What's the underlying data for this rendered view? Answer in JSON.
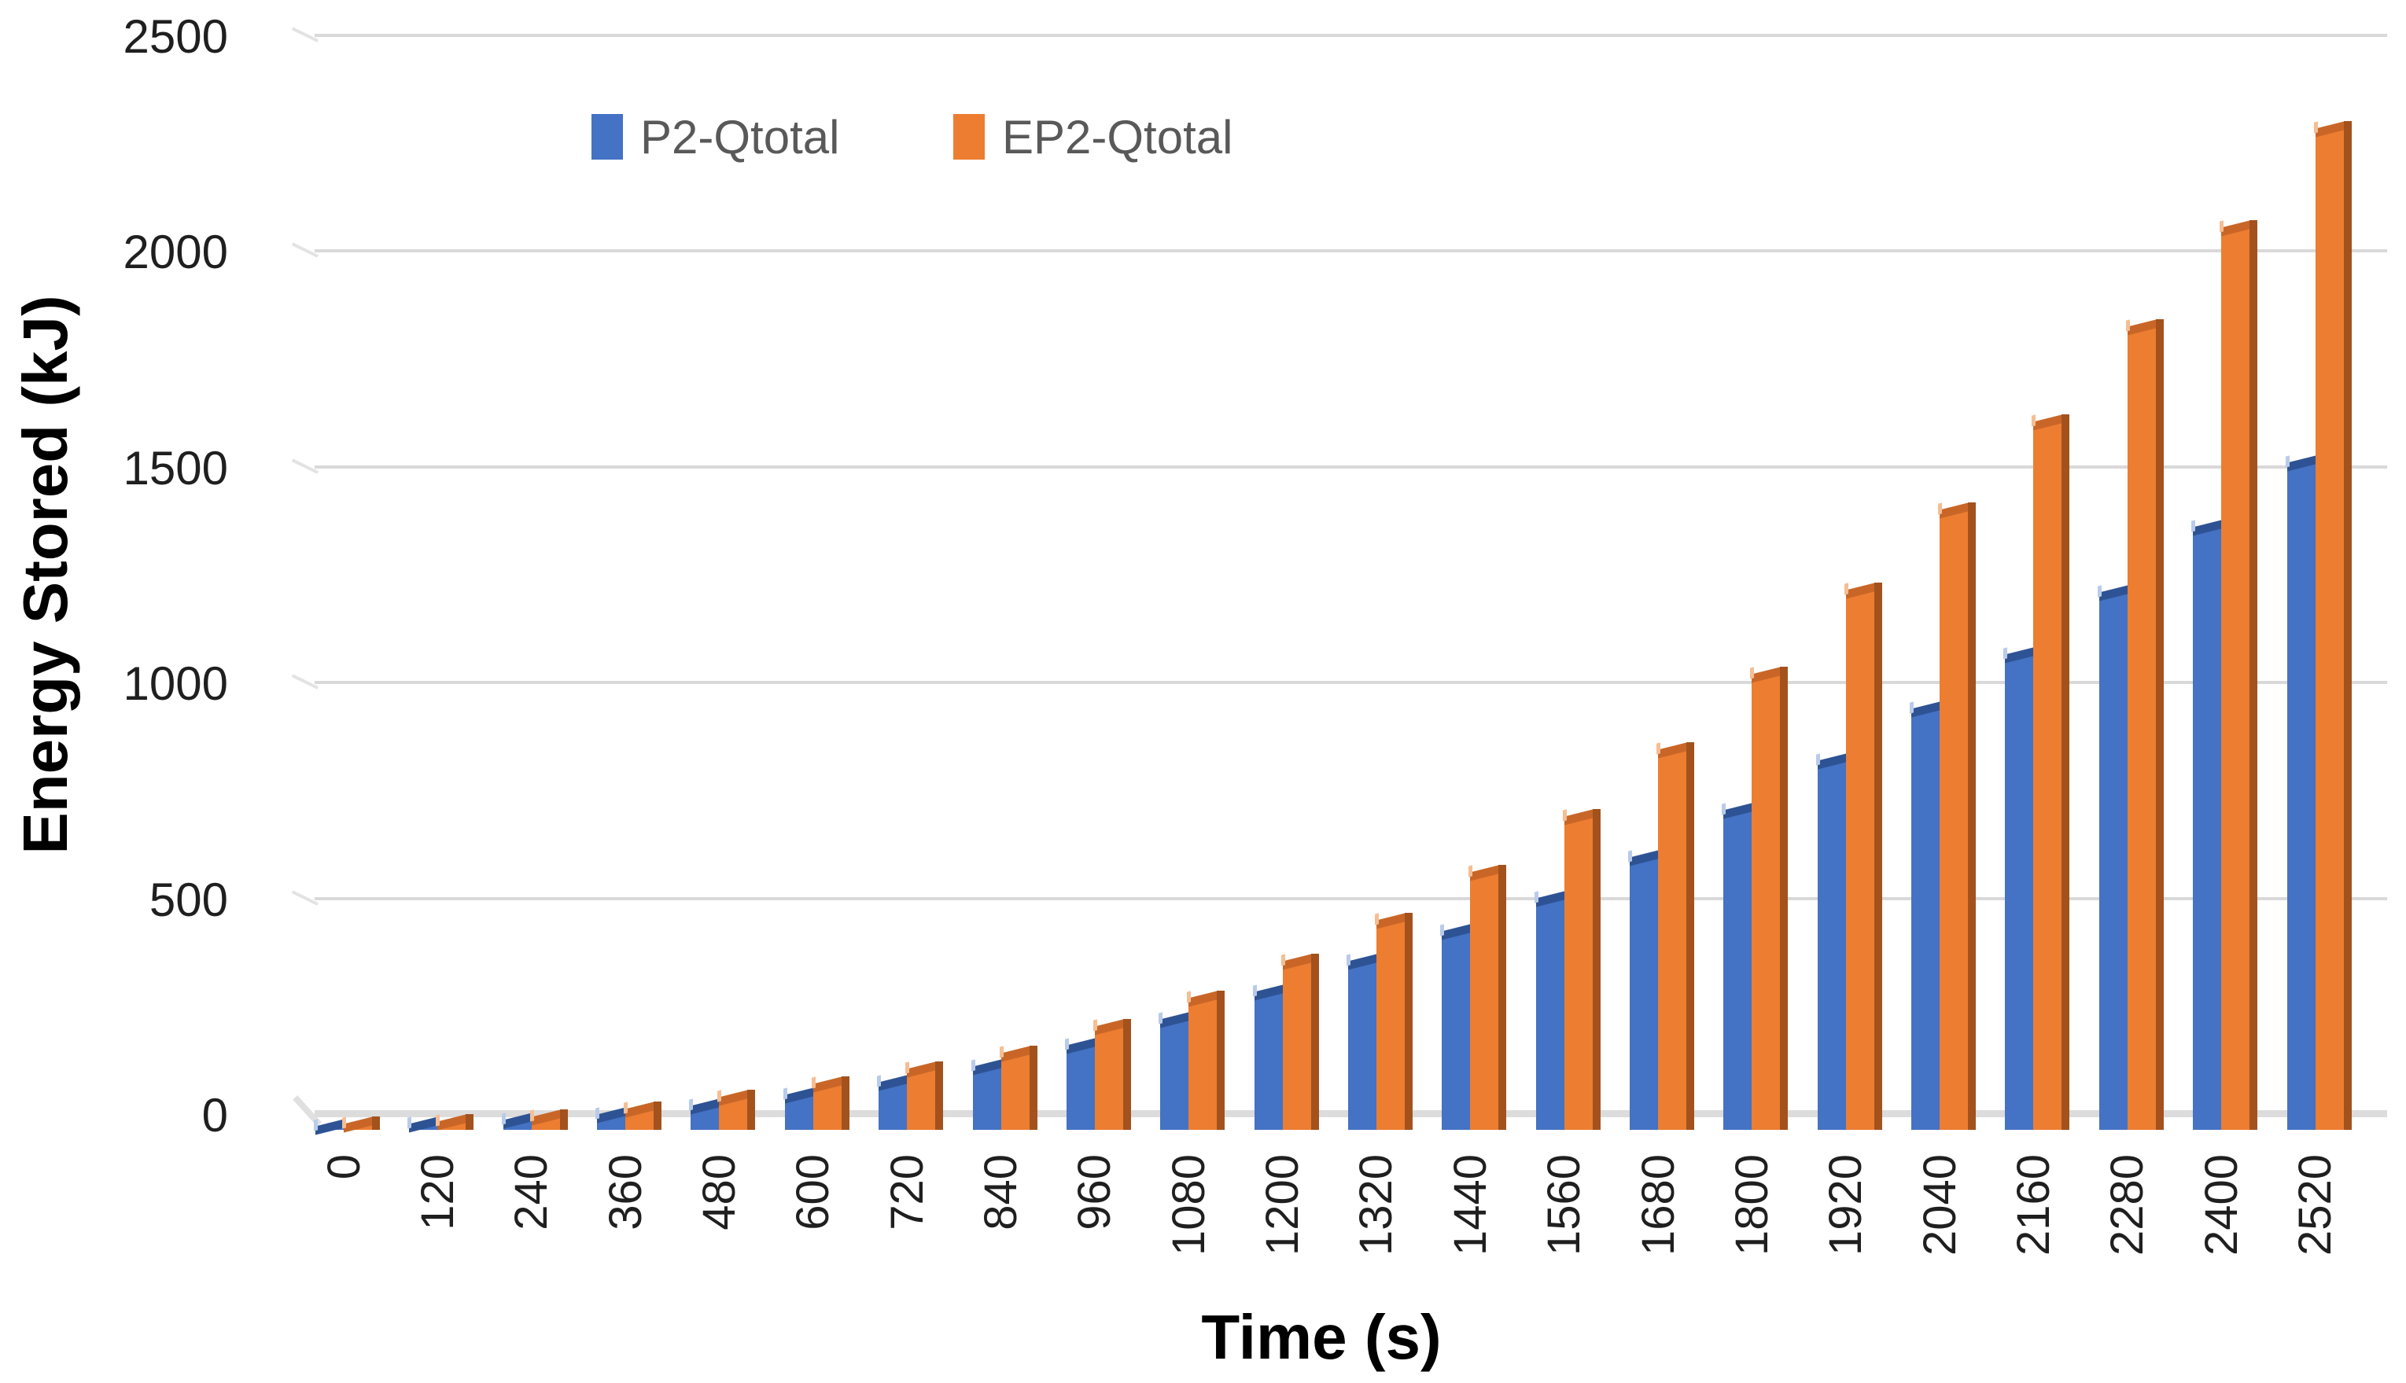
{
  "chart_data": {
    "type": "bar",
    "title": "",
    "xlabel": "Time (s)",
    "ylabel": "Energy Stored (kJ)",
    "categories": [
      "0",
      "120",
      "240",
      "360",
      "480",
      "600",
      "720",
      "840",
      "960",
      "1080",
      "1200",
      "1320",
      "1440",
      "1560",
      "1680",
      "1800",
      "1920",
      "2040",
      "2160",
      "2280",
      "2400",
      "2520"
    ],
    "series": [
      {
        "name": "P2-Qtotal",
        "color": "#4472C4",
        "values": [
          8,
          13,
          22,
          35,
          55,
          80,
          110,
          145,
          195,
          255,
          318,
          390,
          460,
          535,
          630,
          740,
          855,
          975,
          1100,
          1245,
          1395,
          1545
        ]
      },
      {
        "name": "EP2-Qtotal",
        "color": "#ED7D31",
        "values": [
          12,
          18,
          30,
          48,
          75,
          105,
          140,
          176,
          238,
          305,
          390,
          485,
          595,
          725,
          880,
          1055,
          1250,
          1435,
          1640,
          1860,
          2090,
          2320
        ]
      }
    ],
    "ylim": [
      0,
      2500
    ],
    "y_ticks": [
      0,
      500,
      1000,
      1500,
      2000,
      2500
    ],
    "grid": true,
    "legend_position": "top-center",
    "style": "excel-3d-clustered-column"
  },
  "axes": {
    "x_title": "Time (s)",
    "y_title": "Energy Stored (kJ)"
  },
  "legend": {
    "items": [
      {
        "label": "P2-Qtotal",
        "color": "#4472C4"
      },
      {
        "label": "EP2-Qtotal",
        "color": "#ED7D31"
      }
    ]
  },
  "colors": {
    "blue_face": "#4472C4",
    "blue_cap": "#2E5394",
    "orange_face": "#ED7D31",
    "orange_side": "#A3521E",
    "orange_cap": "#C96627",
    "gridline": "#D9D9D9",
    "tick_text": "#1F1F1F",
    "legend_text": "#595959"
  }
}
